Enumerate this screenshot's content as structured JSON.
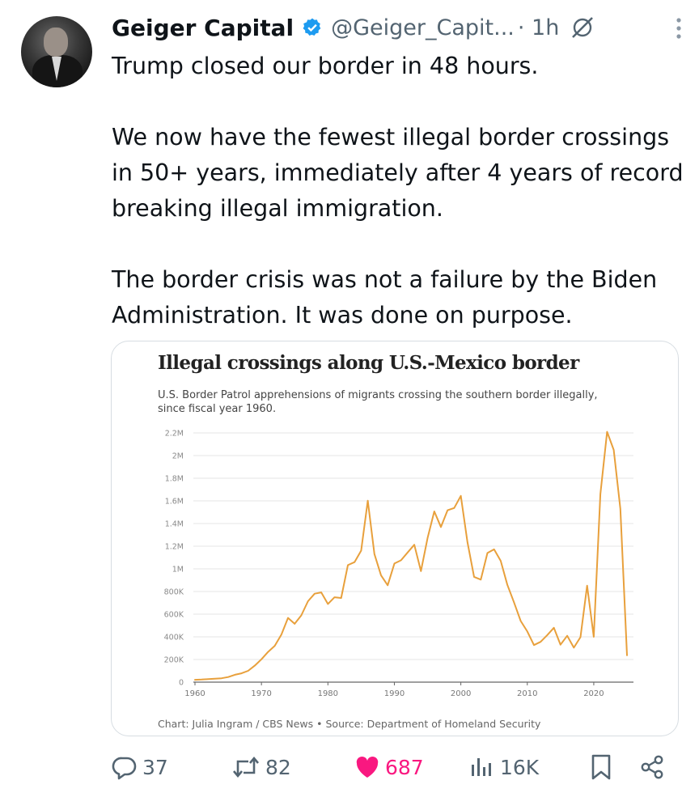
{
  "tweet": {
    "display_name": "Geiger Capital",
    "handle": "@Geiger_Capit...",
    "time": "· 1h",
    "text": "Trump closed our border in 48 hours.\n\nWe now have the fewest illegal border crossings in 50+ years, immediately after 4 years of record breaking illegal immigration.\n\nThe border crisis was not a failure by the Biden Administration. It was done on purpose."
  },
  "media": {
    "title": "Illegal crossings along U.S.-Mexico border",
    "subtitle": "U.S. Border Patrol apprehensions of migrants crossing the southern border illegally, since fiscal year 1960.",
    "source": "Chart: Julia Ingram / CBS News • Source: Department of Homeland Security"
  },
  "chart_data": {
    "type": "line",
    "title": "Illegal crossings along U.S.-Mexico border",
    "subtitle": "U.S. Border Patrol apprehensions of migrants crossing the southern border illegally, since fiscal year 1960.",
    "xlabel": "",
    "ylabel": "",
    "xlim": [
      1960,
      2025
    ],
    "ylim": [
      0,
      2200000
    ],
    "x_ticks": [
      1960,
      1970,
      1980,
      1990,
      2000,
      2010,
      2020
    ],
    "y_ticks": [
      0,
      200000,
      400000,
      600000,
      800000,
      1000000,
      1200000,
      1400000,
      1600000,
      1800000,
      2000000,
      2200000
    ],
    "y_tick_labels": [
      "0",
      "200K",
      "400K",
      "600K",
      "800K",
      "1M",
      "1.2M",
      "1.4M",
      "1.6M",
      "1.8M",
      "2M",
      "2.2M"
    ],
    "grid": true,
    "line_color": "#e8a03c",
    "series": [
      {
        "x": [
          1960,
          1961,
          1962,
          1963,
          1964,
          1965,
          1966,
          1967,
          1968,
          1969,
          1970,
          1971,
          1972,
          1973,
          1974,
          1975,
          1976,
          1977,
          1978,
          1979,
          1980,
          1981,
          1982,
          1983,
          1984,
          1985,
          1986,
          1987,
          1988,
          1989,
          1990,
          1991,
          1992,
          1993,
          1994,
          1995,
          1996,
          1997,
          1998,
          1999,
          2000,
          2001,
          2002,
          2003,
          2004,
          2005,
          2006,
          2007,
          2008,
          2009,
          2010,
          2011,
          2012,
          2013,
          2014,
          2015,
          2016,
          2017,
          2018,
          2019,
          2020,
          2021,
          2022,
          2023,
          2024,
          2025
        ],
        "values": [
          21000,
          23000,
          27000,
          31000,
          34000,
          45000,
          65000,
          78000,
          100000,
          146000,
          202000,
          267000,
          321000,
          420000,
          567000,
          515000,
          589000,
          714000,
          781000,
          792000,
          690000,
          749000,
          743000,
          1033000,
          1059000,
          1161000,
          1602000,
          1131000,
          942000,
          855000,
          1047000,
          1076000,
          1145000,
          1213000,
          980000,
          1272000,
          1507000,
          1369000,
          1517000,
          1537000,
          1644000,
          1236000,
          929000,
          905000,
          1140000,
          1172000,
          1071000,
          859000,
          705000,
          540000,
          447000,
          327000,
          356000,
          415000,
          480000,
          331000,
          409000,
          304000,
          397000,
          852000,
          400000,
          1660000,
          2210000,
          2050000,
          1530000,
          237000
        ]
      }
    ]
  },
  "actions": {
    "replies": "37",
    "reposts": "82",
    "likes": "687",
    "views": "16K"
  },
  "colors": {
    "text": "#0f1419",
    "muted": "#536471",
    "verified": "#1d9bf0",
    "like": "#f91880",
    "chart_line": "#e8a03c"
  },
  "icons": [
    "verified-badge-icon",
    "grok-icon",
    "more-icon",
    "reply-icon",
    "repost-icon",
    "like-icon",
    "views-icon",
    "bookmark-icon",
    "share-icon"
  ]
}
